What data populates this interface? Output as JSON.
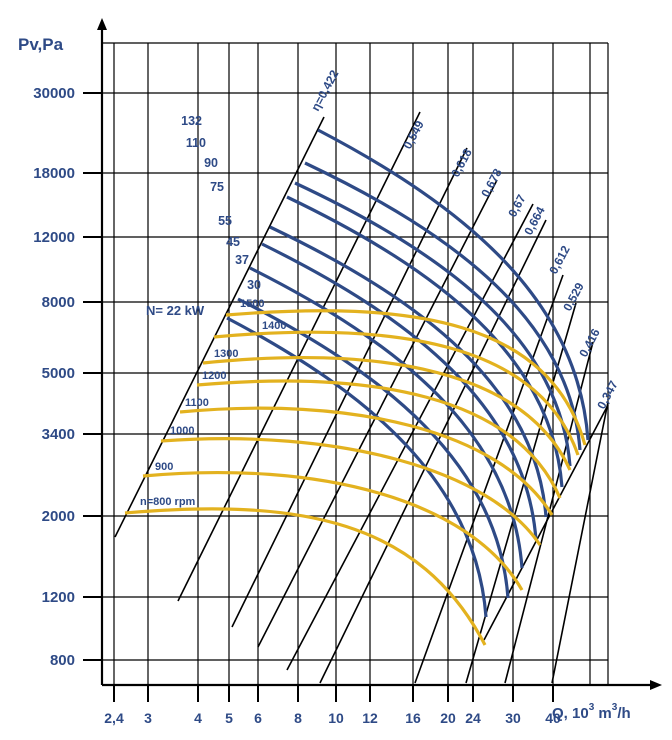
{
  "colors": {
    "power": "#2e4a86",
    "speed": "#e3b21f",
    "grid": "#000000",
    "text": "#2e4a86"
  },
  "chart_data": {
    "type": "line",
    "title": "",
    "ylabel": "Pv,Pa",
    "xlabel": "Q, 10³ m³/h",
    "x_scale": "log",
    "y_scale": "log",
    "x_ticks": [
      "2,4",
      "3",
      "4",
      "5",
      "6",
      "8",
      "10",
      "12",
      "16",
      "20",
      "24",
      "30",
      "40"
    ],
    "y_ticks": [
      "30000",
      "18000",
      "12000",
      "8000",
      "5000",
      "3400",
      "2000",
      "1200",
      "800"
    ],
    "grid": true,
    "speed_curves": {
      "unit": "rpm",
      "labels": [
        "n=800 rpm",
        "900",
        "1000",
        "1100",
        "1200",
        "1300",
        "1400",
        "1500"
      ],
      "values": [
        800,
        900,
        1000,
        1100,
        1200,
        1300,
        1400,
        1500
      ],
      "approx_peak_pressure_pa": [
        2100,
        2700,
        3400,
        4200,
        5000,
        5900,
        6900,
        7900
      ]
    },
    "power_curves": {
      "unit": "kW",
      "label": "N= 22 kW",
      "labels": [
        "30",
        "37",
        "45",
        "55",
        "75",
        "90",
        "110",
        "132"
      ],
      "values": [
        22,
        30,
        37,
        45,
        55,
        75,
        90,
        110,
        132
      ]
    },
    "efficiency_lines": {
      "symbol": "η",
      "labels": [
        "η=0,422",
        "0,549",
        "0,618",
        "0,678",
        "0,67",
        "0,664",
        "0,612",
        "0,529",
        "0,416",
        "0,347"
      ],
      "values": [
        0.422,
        0.549,
        0.618,
        0.678,
        0.67,
        0.664,
        0.612,
        0.529,
        0.416,
        0.347
      ]
    }
  },
  "axes": {
    "y_title": "Pv,Pa",
    "x_title_prefix": "Q, 10",
    "x_title_sup1": "3",
    "x_title_mid": " m",
    "x_title_sup2": "3",
    "x_title_suffix": "/h"
  }
}
